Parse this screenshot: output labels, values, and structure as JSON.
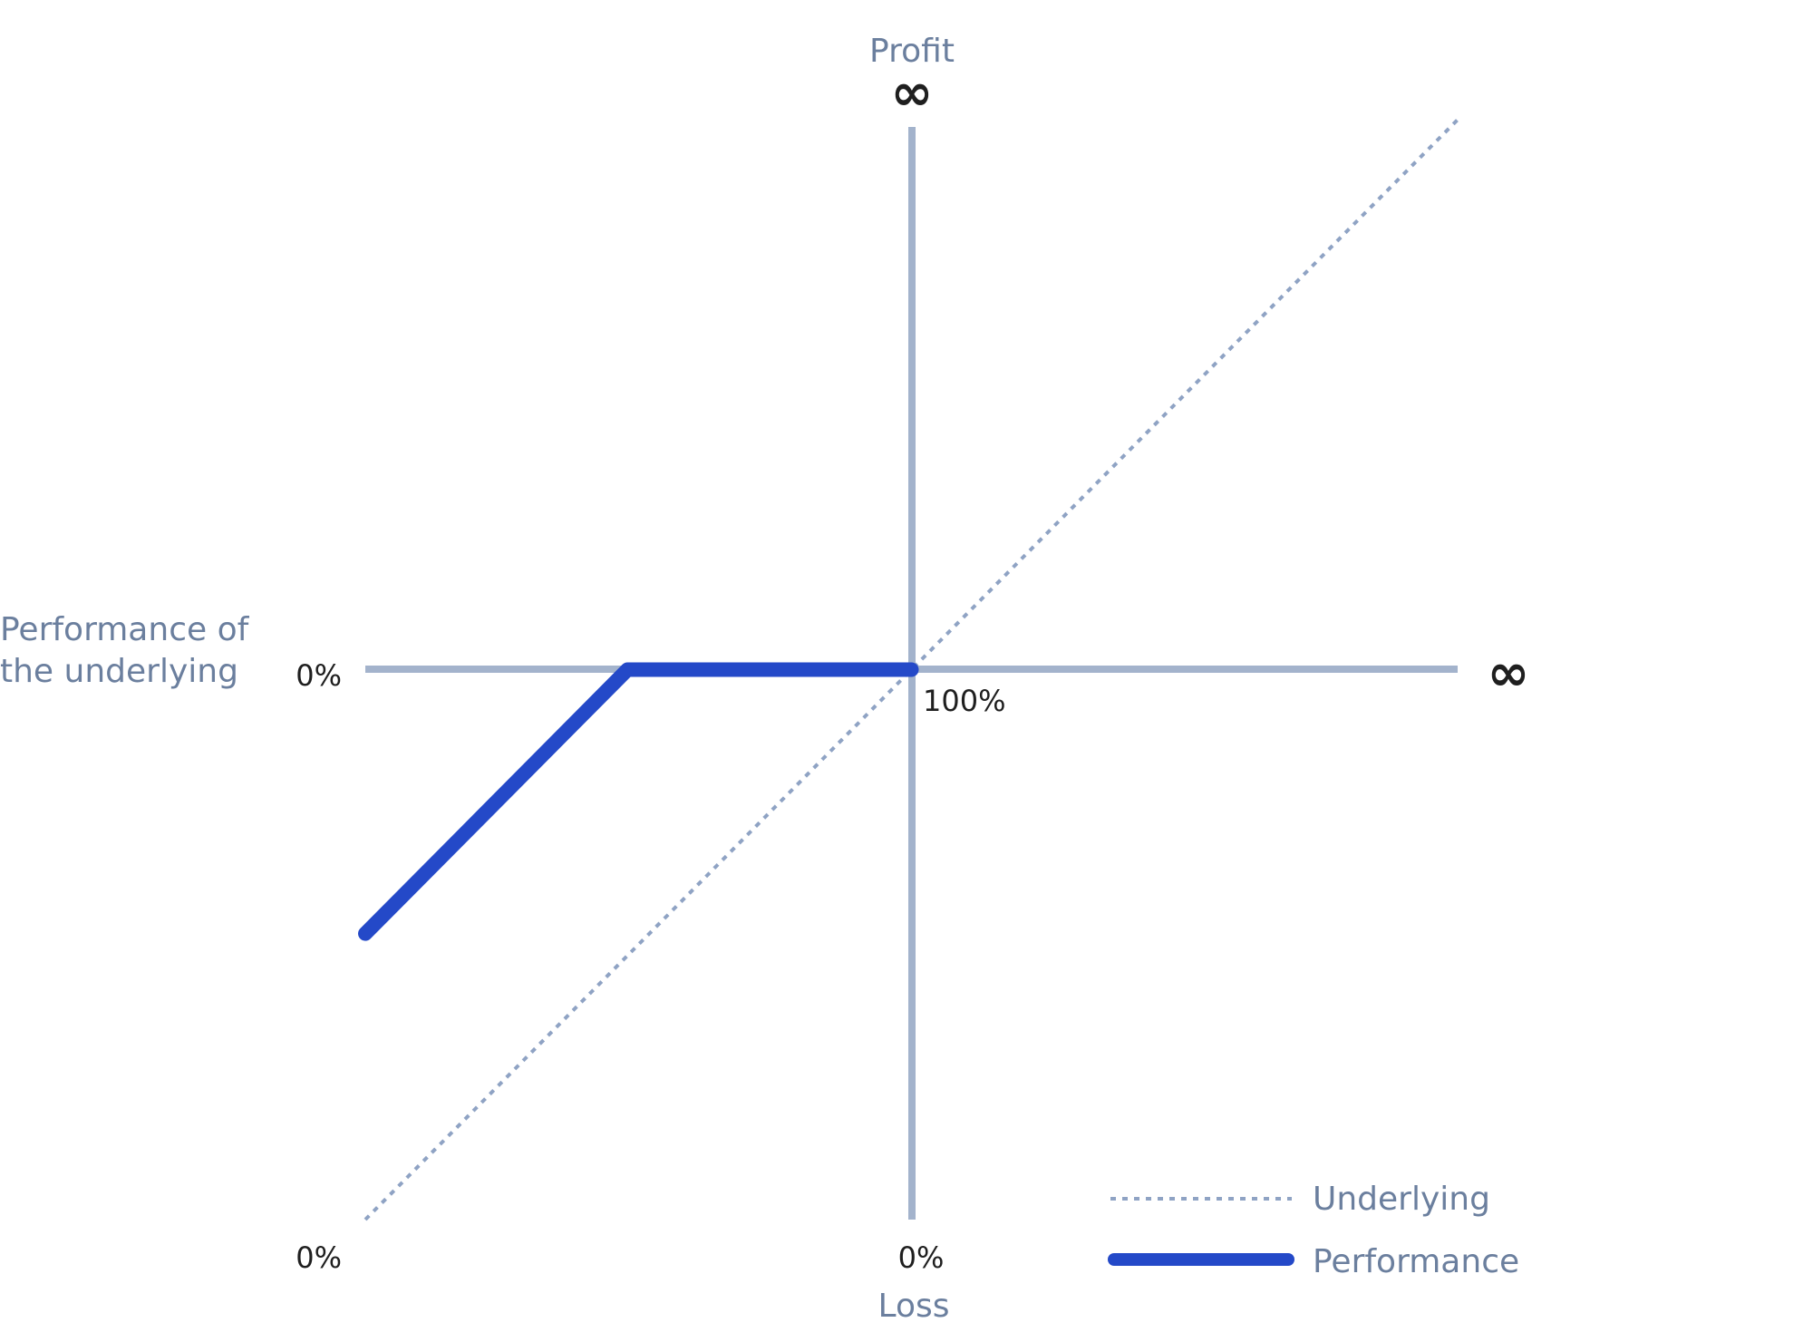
{
  "labels": {
    "y_axis_top": "Profit",
    "y_axis_bottom": "Loss",
    "x_axis_label_line1": "Performance of",
    "x_axis_label_line2": "the underlying",
    "infinity_top": "∞",
    "infinity_right": "∞",
    "zero_left": "0%",
    "zero_bottom_left": "0%",
    "zero_bottom_center": "0%",
    "hundred_pct": "100%"
  },
  "legend": {
    "underlying": "Underlying",
    "performance": "Performance"
  },
  "colors": {
    "axis": "#a3b3cc",
    "underlying": "#8fa3c4",
    "performance": "#2449c8",
    "muted_text": "#6b7f9e",
    "dark_text": "#1f1f1f"
  },
  "chart_data": {
    "type": "line",
    "series": [
      {
        "name": "Underlying",
        "style": "dotted",
        "points": [
          [
            0,
            0
          ],
          [
            100,
            100
          ],
          [
            200,
            200
          ]
        ]
      },
      {
        "name": "Performance",
        "style": "solid",
        "points": [
          [
            0,
            52
          ],
          [
            48,
            100
          ],
          [
            100,
            100
          ]
        ]
      }
    ]
  }
}
